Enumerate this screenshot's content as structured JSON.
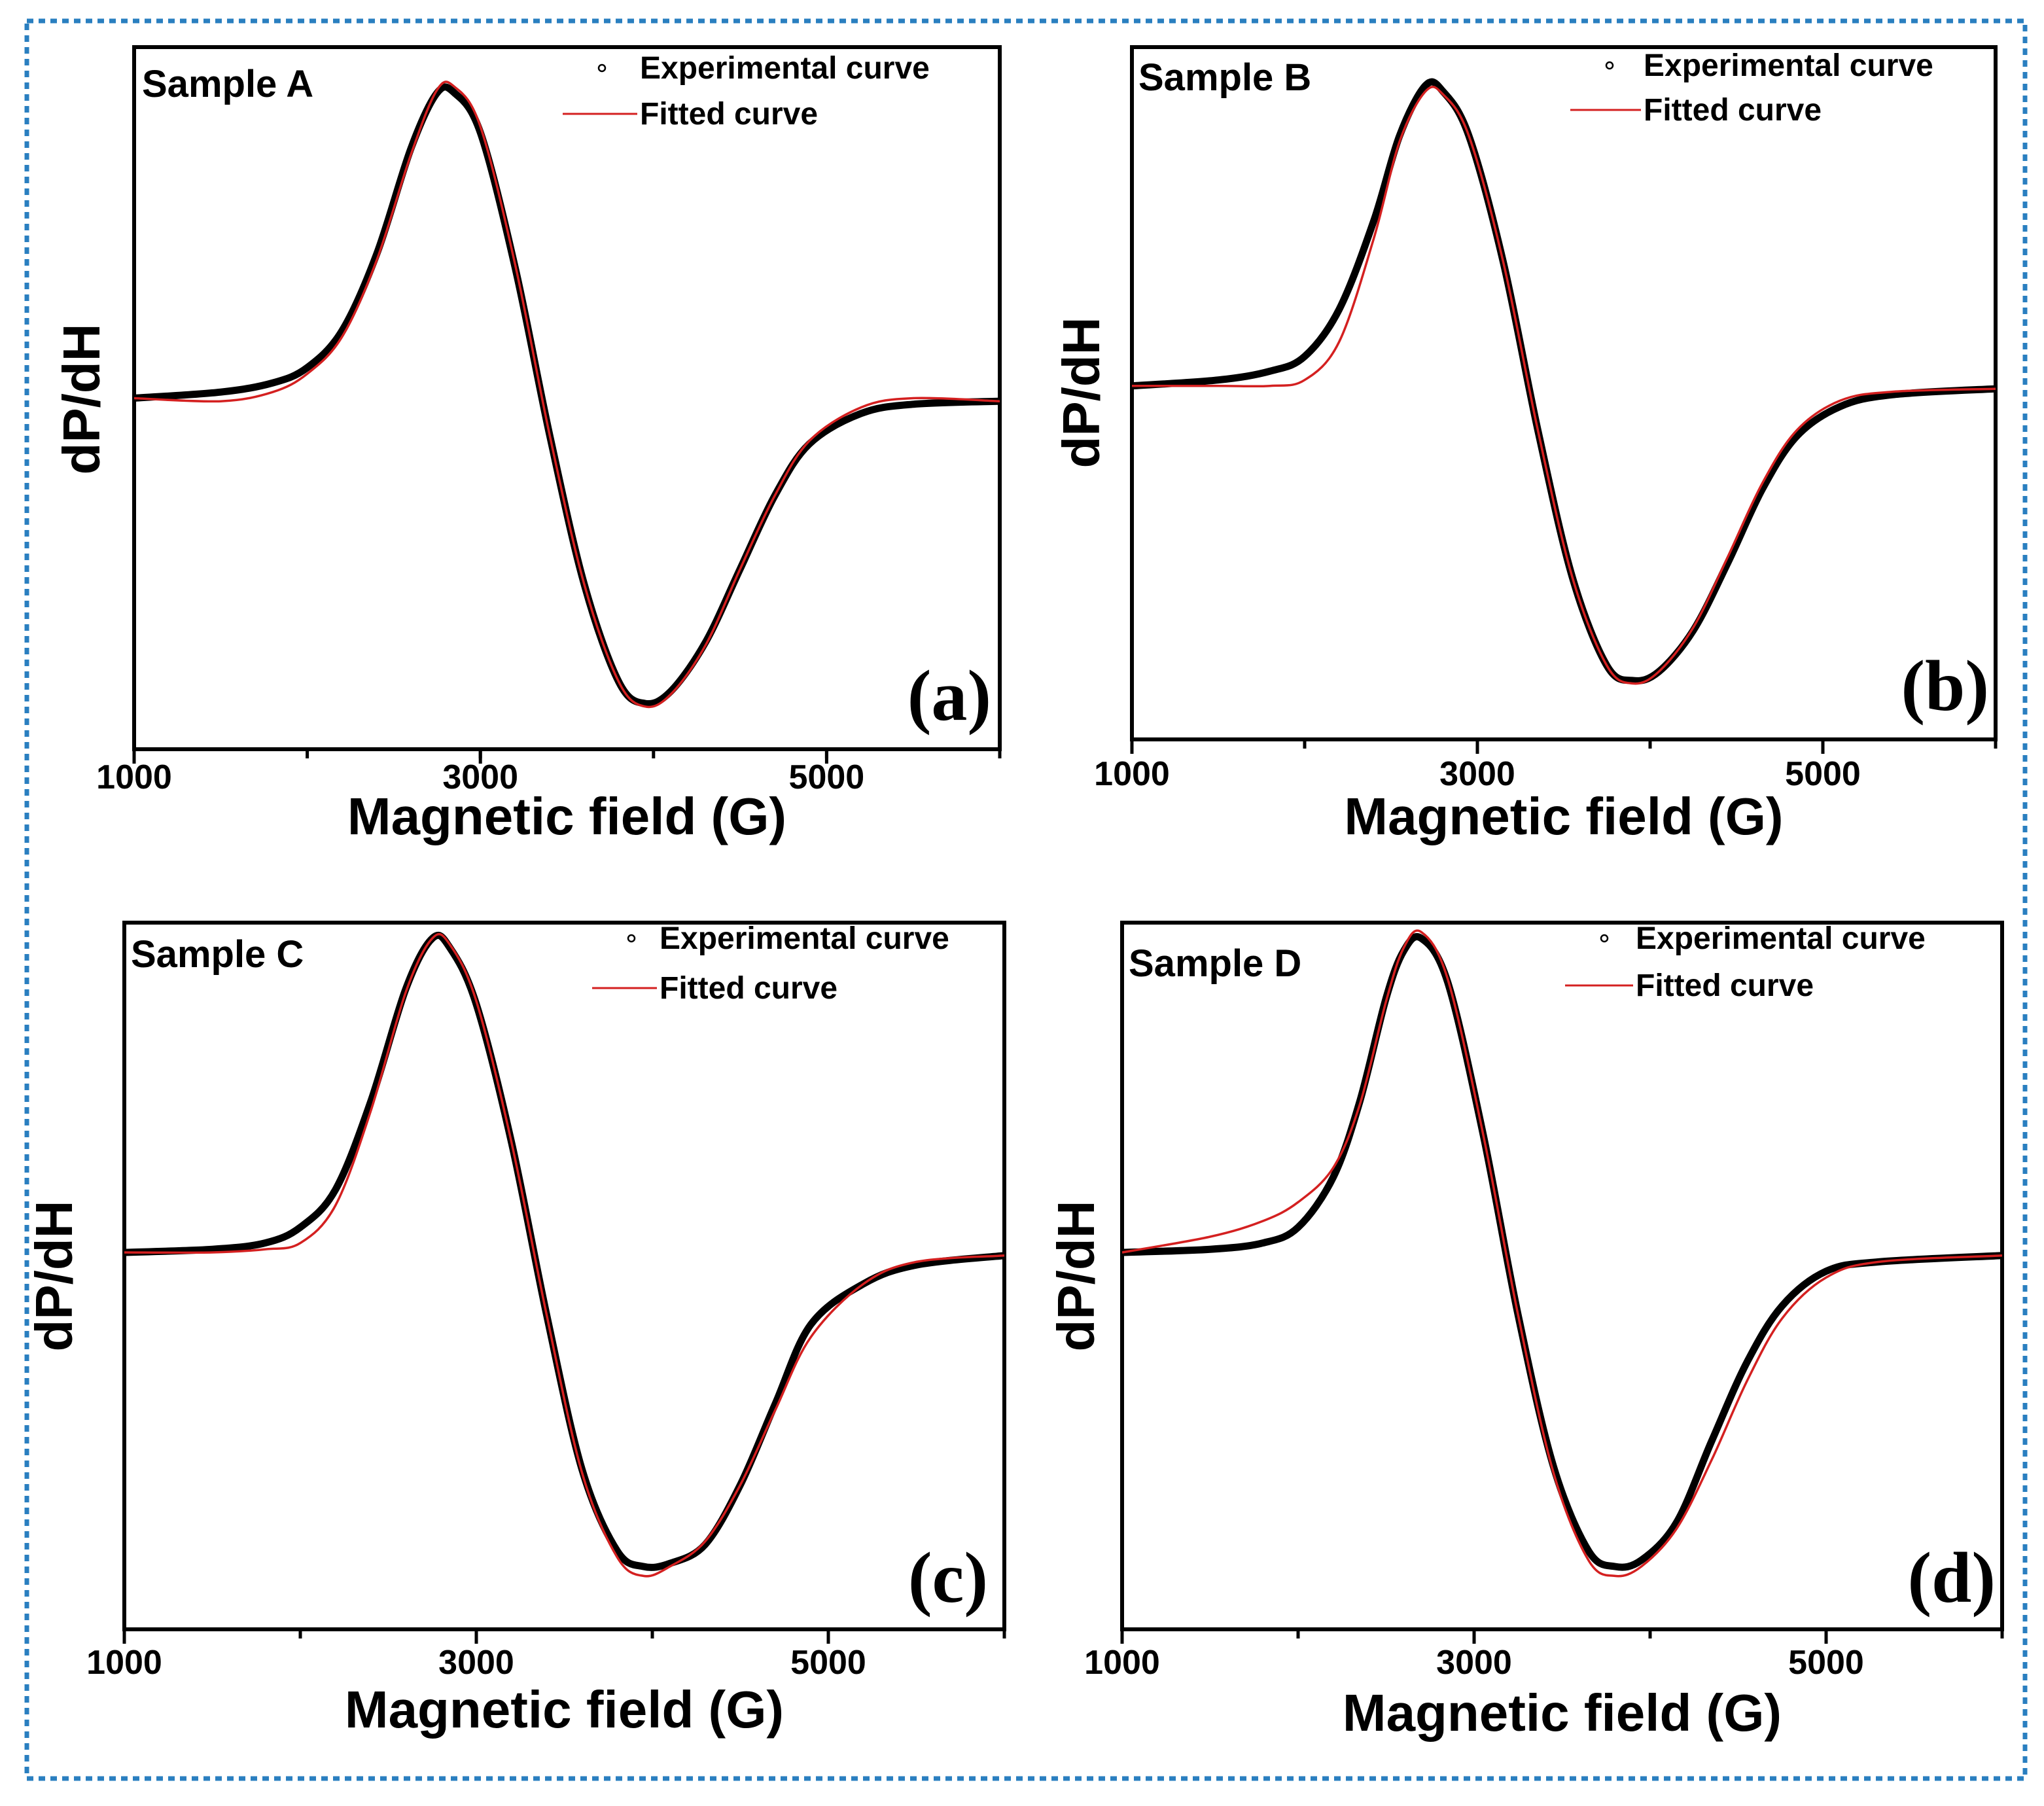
{
  "colors": {
    "frame": "#2a7fc0",
    "experimental": "#000000",
    "fitted": "#d42020"
  },
  "chart_data": [
    {
      "type": "line",
      "sample_label": "Sample A",
      "panel_label": "(a)",
      "xlabel": "Magnetic field (G)",
      "ylabel": "dP/dH",
      "xlim": [
        1000,
        6000
      ],
      "x_ticks": [
        1000,
        3000,
        5000
      ],
      "x_tick_labels": [
        "1000",
        "3000",
        "5000"
      ],
      "ylim": [
        -1.15,
        1.15
      ],
      "legend": {
        "position": "top-right",
        "entries": [
          "Experimental curve",
          "Fitted curve"
        ]
      },
      "series": [
        {
          "name": "Experimental curve",
          "style": "scatter-line",
          "x": [
            1000,
            1500,
            1800,
            2000,
            2200,
            2400,
            2600,
            2750,
            2850,
            3000,
            3200,
            3400,
            3600,
            3800,
            3950,
            4100,
            4300,
            4500,
            4700,
            4900,
            5200,
            5500,
            6000
          ],
          "y": [
            0.0,
            0.02,
            0.05,
            0.1,
            0.22,
            0.47,
            0.82,
            1.0,
            1.0,
            0.87,
            0.43,
            -0.12,
            -0.61,
            -0.93,
            -1.0,
            -0.96,
            -0.8,
            -0.56,
            -0.32,
            -0.15,
            -0.05,
            -0.02,
            -0.01
          ]
        },
        {
          "name": "Fitted curve",
          "style": "line",
          "x": [
            1000,
            1500,
            1800,
            2000,
            2200,
            2400,
            2600,
            2750,
            2850,
            3000,
            3200,
            3400,
            3600,
            3800,
            3950,
            4100,
            4300,
            4500,
            4700,
            4900,
            5200,
            5500,
            6000
          ],
          "y": [
            0.0,
            -0.01,
            0.02,
            0.08,
            0.2,
            0.45,
            0.8,
            1.01,
            1.02,
            0.89,
            0.44,
            -0.12,
            -0.61,
            -0.93,
            -1.01,
            -0.97,
            -0.81,
            -0.56,
            -0.32,
            -0.14,
            -0.03,
            0.0,
            -0.01
          ]
        }
      ]
    },
    {
      "type": "line",
      "sample_label": "Sample B",
      "panel_label": "(b)",
      "xlabel": "Magnetic field (G)",
      "ylabel": "dP/dH",
      "xlim": [
        1000,
        6000
      ],
      "x_ticks": [
        1000,
        3000,
        5000
      ],
      "x_tick_labels": [
        "1000",
        "3000",
        "5000"
      ],
      "ylim": [
        -1.2,
        1.15
      ],
      "legend": {
        "position": "top-right",
        "entries": [
          "Experimental curve",
          "Fitted curve"
        ]
      },
      "series": [
        {
          "name": "Experimental curve",
          "style": "scatter-line",
          "x": [
            1000,
            1500,
            1800,
            2000,
            2200,
            2400,
            2550,
            2700,
            2800,
            2950,
            3150,
            3350,
            3550,
            3750,
            3900,
            4050,
            4250,
            4450,
            4650,
            4850,
            5100,
            5400,
            6000
          ],
          "y": [
            0.0,
            0.02,
            0.05,
            0.1,
            0.26,
            0.56,
            0.85,
            1.02,
            1.0,
            0.85,
            0.42,
            -0.15,
            -0.65,
            -0.95,
            -1.0,
            -0.97,
            -0.83,
            -0.6,
            -0.35,
            -0.17,
            -0.07,
            -0.03,
            -0.01
          ]
        },
        {
          "name": "Fitted curve",
          "style": "line",
          "x": [
            1000,
            1500,
            1800,
            2000,
            2200,
            2400,
            2550,
            2700,
            2800,
            2950,
            3150,
            3350,
            3550,
            3750,
            3900,
            4050,
            4250,
            4450,
            4650,
            4850,
            5100,
            5400,
            6000
          ],
          "y": [
            0.0,
            0.0,
            0.0,
            0.02,
            0.15,
            0.5,
            0.83,
            1.0,
            0.99,
            0.85,
            0.42,
            -0.15,
            -0.65,
            -0.95,
            -1.01,
            -0.97,
            -0.82,
            -0.58,
            -0.33,
            -0.15,
            -0.05,
            -0.02,
            -0.01
          ]
        }
      ]
    },
    {
      "type": "line",
      "sample_label": "Sample C",
      "panel_label": "(c)",
      "xlabel": "Magnetic field (G)",
      "ylabel": "dP/dH",
      "xlim": [
        1000,
        6000
      ],
      "x_ticks": [
        1000,
        3000,
        5000
      ],
      "x_tick_labels": [
        "1000",
        "3000",
        "5000"
      ],
      "ylim": [
        -1.2,
        1.05
      ],
      "legend": {
        "position": "top-right",
        "entries": [
          "Experimental curve",
          "Fitted curve"
        ]
      },
      "series": [
        {
          "name": "Experimental curve",
          "style": "scatter-line",
          "x": [
            1000,
            1500,
            1800,
            2000,
            2200,
            2400,
            2600,
            2750,
            2850,
            3000,
            3200,
            3400,
            3600,
            3800,
            3950,
            4100,
            4300,
            4500,
            4700,
            4900,
            5200,
            5500,
            6000
          ],
          "y": [
            0.0,
            0.01,
            0.03,
            0.08,
            0.2,
            0.48,
            0.84,
            1.0,
            0.97,
            0.79,
            0.35,
            -0.2,
            -0.69,
            -0.95,
            -1.0,
            -0.99,
            -0.93,
            -0.74,
            -0.48,
            -0.23,
            -0.1,
            -0.04,
            -0.01
          ]
        },
        {
          "name": "Fitted curve",
          "style": "line",
          "x": [
            1000,
            1500,
            1800,
            2000,
            2200,
            2400,
            2600,
            2750,
            2850,
            3000,
            3200,
            3400,
            3600,
            3800,
            3950,
            4100,
            4300,
            4500,
            4700,
            4900,
            5200,
            5500,
            6000
          ],
          "y": [
            0.0,
            0.0,
            0.01,
            0.03,
            0.15,
            0.45,
            0.83,
            1.0,
            0.98,
            0.8,
            0.35,
            -0.2,
            -0.7,
            -0.97,
            -1.03,
            -1.0,
            -0.92,
            -0.74,
            -0.5,
            -0.27,
            -0.1,
            -0.03,
            -0.01
          ]
        }
      ]
    },
    {
      "type": "line",
      "sample_label": "Sample D",
      "panel_label": "(d)",
      "xlabel": "Magnetic field (G)",
      "ylabel": "dP/dH",
      "xlim": [
        1000,
        6000
      ],
      "x_ticks": [
        1000,
        3000,
        5000
      ],
      "x_tick_labels": [
        "1000",
        "3000",
        "5000"
      ],
      "ylim": [
        -1.2,
        1.05
      ],
      "legend": {
        "position": "top-right",
        "entries": [
          "Experimental curve",
          "Fitted curve"
        ]
      },
      "series": [
        {
          "name": "Experimental curve",
          "style": "scatter-line",
          "x": [
            1000,
            1500,
            1800,
            2000,
            2200,
            2350,
            2500,
            2600,
            2700,
            2850,
            3050,
            3250,
            3450,
            3650,
            3800,
            3950,
            4150,
            4350,
            4550,
            4750,
            5000,
            5300,
            6000
          ],
          "y": [
            0.0,
            0.01,
            0.03,
            0.08,
            0.24,
            0.48,
            0.81,
            0.96,
            1.0,
            0.86,
            0.38,
            -0.2,
            -0.68,
            -0.95,
            -1.0,
            -0.98,
            -0.86,
            -0.6,
            -0.35,
            -0.17,
            -0.06,
            -0.03,
            -0.01
          ]
        },
        {
          "name": "Fitted curve",
          "style": "line",
          "x": [
            1000,
            1500,
            1800,
            2000,
            2200,
            2350,
            2500,
            2600,
            2700,
            2850,
            3050,
            3250,
            3450,
            3650,
            3800,
            3950,
            4150,
            4350,
            4550,
            4750,
            5000,
            5300,
            6000
          ],
          "y": [
            0.0,
            0.05,
            0.1,
            0.16,
            0.27,
            0.47,
            0.8,
            0.97,
            1.02,
            0.87,
            0.38,
            -0.2,
            -0.7,
            -0.98,
            -1.03,
            -1.0,
            -0.88,
            -0.66,
            -0.41,
            -0.21,
            -0.08,
            -0.03,
            -0.01
          ]
        }
      ]
    }
  ]
}
